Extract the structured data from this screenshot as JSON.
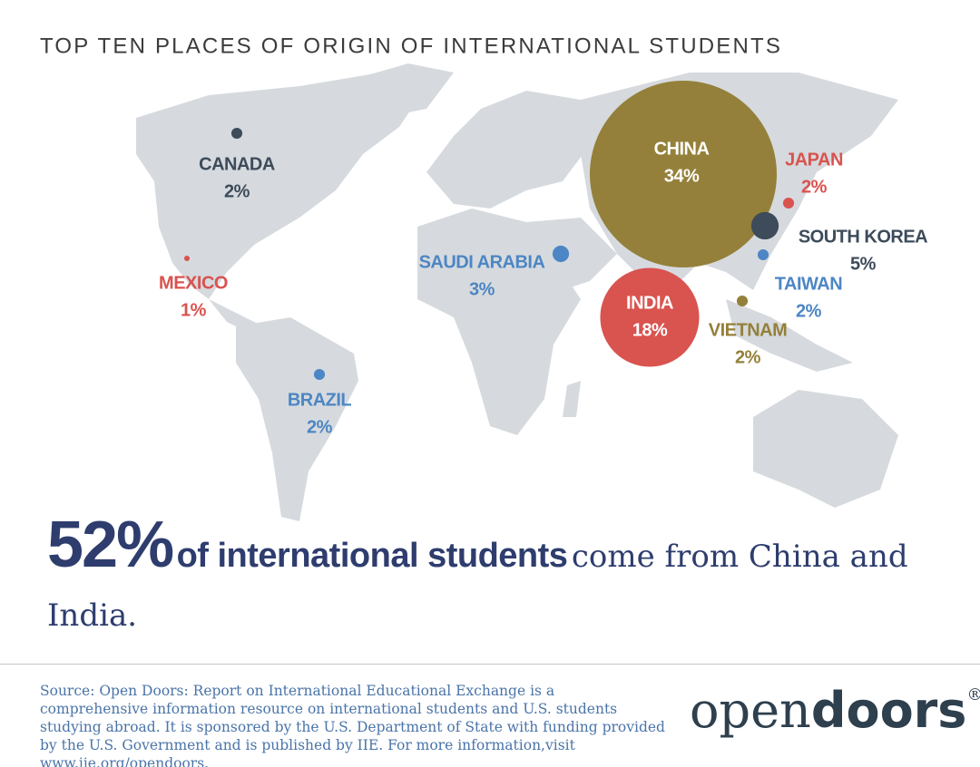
{
  "chart_data": {
    "type": "bubble_map",
    "title": "TOP TEN PLACES OF ORIGIN OF INTERNATIONAL STUDENTS",
    "categories": [
      "CANADA",
      "MEXICO",
      "BRAZIL",
      "SAUDI ARABIA",
      "CHINA",
      "INDIA",
      "JAPAN",
      "SOUTH KOREA",
      "TAIWAN",
      "VIETNAM"
    ],
    "values": [
      2,
      1,
      2,
      3,
      34,
      18,
      2,
      5,
      2,
      2
    ],
    "value_labels": [
      "2%",
      "1%",
      "2%",
      "3%",
      "34%",
      "18%",
      "2%",
      "5%",
      "2%",
      "2%"
    ],
    "colors": [
      "#3d4b5a",
      "#d9534f",
      "#4d86c4",
      "#4d86c4",
      "#94803a",
      "#d9534f",
      "#d9534f",
      "#3d4b5a",
      "#4d86c4",
      "#94803a"
    ]
  },
  "headline": {
    "figure": "52%",
    "bold": "of international students",
    "rest": "come from China and India."
  },
  "source": "Source: Open Doors: Report on International Educational Exchange is a comprehensive information resource on international students and U.S. students studying abroad.  It is sponsored by the U.S. Department of State with funding provided by the U.S. Government and is published by IIE. For more information,visit www.iie.org/opendoors.",
  "logo": {
    "light": "open",
    "bold": "doors",
    "mark": "®"
  }
}
